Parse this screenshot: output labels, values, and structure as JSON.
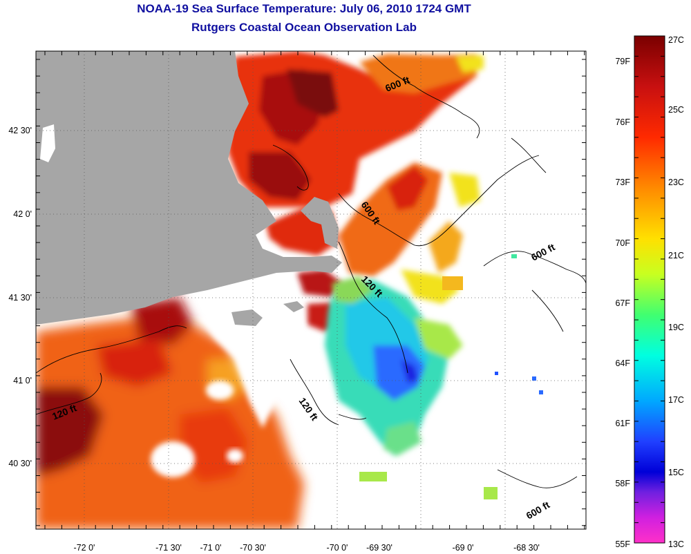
{
  "title": {
    "line1": "NOAA-19 Sea Surface Temperature:  July 06, 2010 1724 GMT",
    "line2": "Rutgers Coastal Ocean Observation Lab"
  },
  "map": {
    "lon_labels": [
      "-72 0'",
      "-71 30'",
      "-71 0'",
      "-70 30'",
      "-70 0'",
      "-69 30'",
      "-69 0'",
      "-68 30'"
    ],
    "lat_labels": [
      "42 30'",
      "42 0'",
      "41 30'",
      "41 0'",
      "40 30'"
    ],
    "contour_labels": [
      {
        "text": "600 ft"
      },
      {
        "text": "600 ft"
      },
      {
        "text": "600 ft"
      },
      {
        "text": "600 ft"
      },
      {
        "text": "120 ft"
      },
      {
        "text": "120 ft"
      },
      {
        "text": "120 ft"
      }
    ],
    "colors": {
      "land": "#a6a6a6",
      "warm_dark": "#8b0a0a",
      "warm": "#e02a10",
      "orange": "#f26a18",
      "yellow": "#f2e21c",
      "green": "#a8e84a",
      "cyan": "#22d8e8",
      "blue": "#2a6aff"
    }
  },
  "colorbar": {
    "f_labels": [
      "79F",
      "76F",
      "73F",
      "70F",
      "67F",
      "64F",
      "61F",
      "58F",
      "55F"
    ],
    "c_labels": [
      "27C",
      "25C",
      "23C",
      "21C",
      "19C",
      "17C",
      "15C",
      "13C"
    ]
  }
}
